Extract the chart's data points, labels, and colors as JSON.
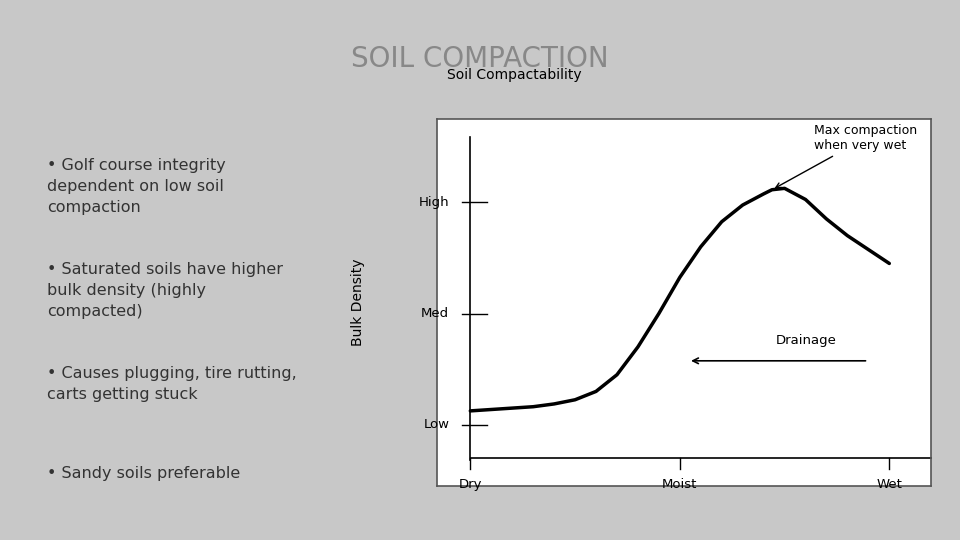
{
  "title": "SOIL COMPACTION",
  "title_color": "#888888",
  "title_fontsize": 20,
  "slide_bg_color": "#c8c8c8",
  "header_bg_color": "#f0f0f0",
  "content_bg_color": "#d0d0d0",
  "bullet_points": [
    "Golf course integrity\ndependent on low soil\ncompaction",
    "Saturated soils have higher\nbulk density (highly\ncompacted)",
    "Causes plugging, tire rutting,\ncarts getting stuck",
    "Sandy soils preferable"
  ],
  "bullet_color": "#333333",
  "bullet_fontsize": 11.5,
  "chart_title": "Soil Compactability",
  "chart_xlabel_labels": [
    "Dry",
    "Moist",
    "Wet"
  ],
  "chart_ylabel_labels": [
    "Low",
    "Med",
    "High"
  ],
  "chart_annotation1": "Max compaction\nwhen very wet",
  "chart_annotation2": "Drainage",
  "chart_ylabel_text": "Bulk Density",
  "curve_x": [
    0.0,
    0.05,
    0.1,
    0.15,
    0.2,
    0.25,
    0.3,
    0.35,
    0.4,
    0.45,
    0.5,
    0.55,
    0.6,
    0.65,
    0.7,
    0.72,
    0.75,
    0.8,
    0.85,
    0.9,
    1.0
  ],
  "curve_y": [
    0.15,
    0.155,
    0.16,
    0.165,
    0.175,
    0.19,
    0.22,
    0.28,
    0.38,
    0.5,
    0.63,
    0.74,
    0.83,
    0.89,
    0.93,
    0.945,
    0.95,
    0.91,
    0.84,
    0.78,
    0.68
  ]
}
